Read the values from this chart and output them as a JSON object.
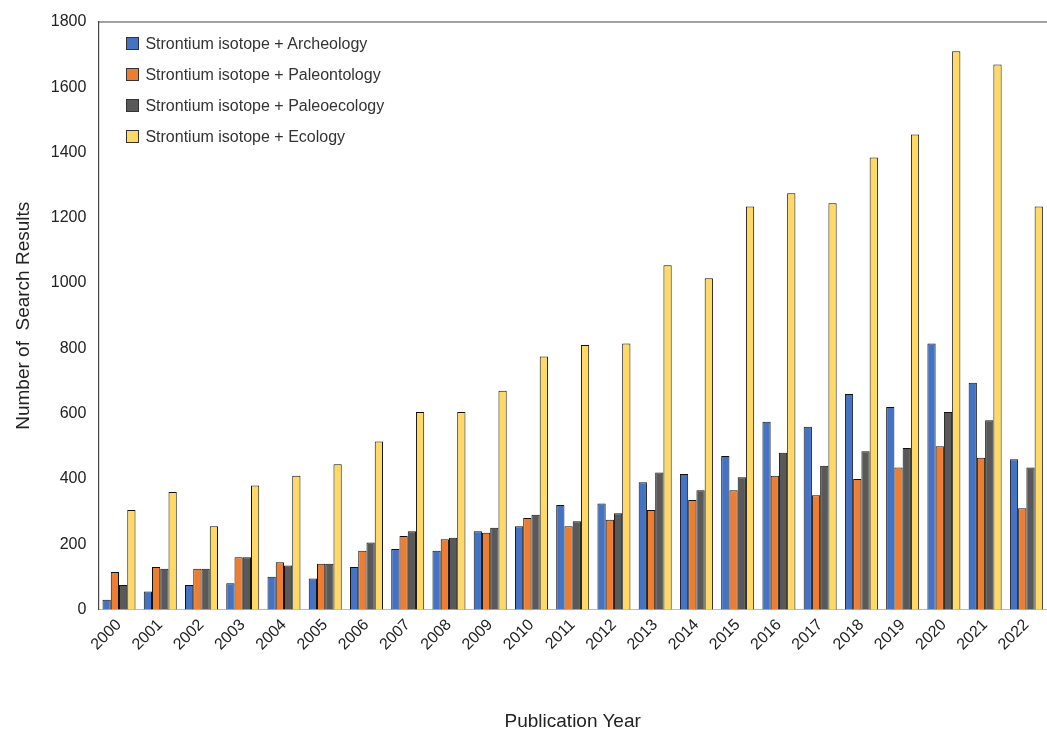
{
  "chart_data": {
    "type": "bar",
    "xlabel": "Publication Year",
    "ylabel": "Number of  Search Results",
    "categories": [
      "2000",
      "2001",
      "2002",
      "2003",
      "2004",
      "2005",
      "2006",
      "2007",
      "2008",
      "2009",
      "2010",
      "2011",
      "2012",
      "2013",
      "2014",
      "2015",
      "2016",
      "2017",
      "2018",
      "2019",
      "2020",
      "2021",
      "2022"
    ],
    "series": [
      {
        "name": "Strontium isotope + Archeology",
        "color": "#4472c4",
        "values": [
          30,
          55,
          75,
          80,
          100,
          95,
          130,
          185,
          180,
          240,
          255,
          320,
          325,
          390,
          415,
          470,
          575,
          560,
          660,
          620,
          815,
          695,
          460
        ]
      },
      {
        "name": "Strontium isotope + Paleontology",
        "color": "#ed7d31",
        "values": [
          115,
          130,
          125,
          160,
          145,
          140,
          180,
          225,
          215,
          235,
          280,
          255,
          275,
          305,
          335,
          365,
          410,
          350,
          400,
          435,
          500,
          465,
          310
        ]
      },
      {
        "name": "Strontium isotope + Paleoecology",
        "color": "#595959",
        "values": [
          75,
          125,
          125,
          160,
          135,
          140,
          205,
          240,
          220,
          250,
          290,
          270,
          295,
          420,
          365,
          405,
          480,
          440,
          485,
          495,
          605,
          580,
          435
        ]
      },
      {
        "name": "Strontium isotope + Ecology",
        "color": "#ffd966",
        "values": [
          305,
          360,
          255,
          380,
          410,
          445,
          515,
          605,
          605,
          670,
          775,
          810,
          815,
          1055,
          1015,
          1235,
          1275,
          1245,
          1385,
          1455,
          1710,
          1670,
          1235
        ]
      }
    ],
    "ylim": [
      0,
      1800
    ],
    "yticks": [
      0,
      200,
      400,
      600,
      800,
      1000,
      1200,
      1400,
      1600,
      1800
    ],
    "grid": false,
    "legend": "top left"
  }
}
